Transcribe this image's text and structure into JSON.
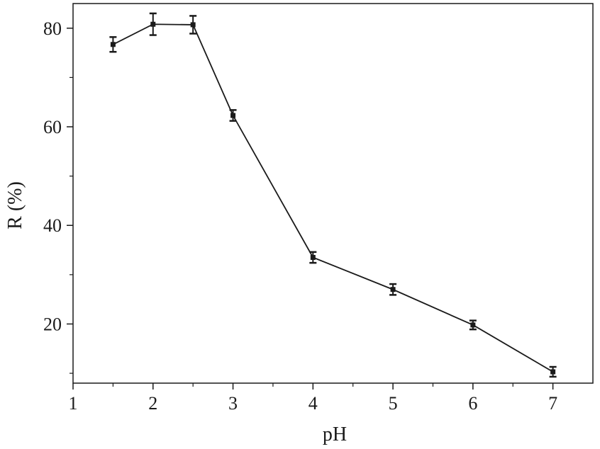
{
  "chart_data": {
    "type": "line",
    "title": "",
    "xlabel": "pH",
    "ylabel": "R (%)",
    "xlim": [
      1,
      7.5
    ],
    "ylim": [
      8,
      85
    ],
    "xticks": [
      1,
      2,
      3,
      4,
      5,
      6,
      7
    ],
    "yticks": [
      20,
      40,
      60,
      80
    ],
    "grid": false,
    "legend": "none",
    "series": [
      {
        "x": [
          1.5,
          2,
          2.5,
          3,
          4,
          5,
          6,
          7
        ],
        "y": [
          76.7,
          80.8,
          80.7,
          62.3,
          33.5,
          27.0,
          19.8,
          10.3
        ],
        "yerr": [
          1.5,
          2.2,
          1.8,
          1.1,
          1.1,
          1.1,
          0.9,
          1.0
        ]
      }
    ],
    "colors": {
      "line": "#1a1a1a",
      "axis": "#1a1a1a"
    }
  }
}
